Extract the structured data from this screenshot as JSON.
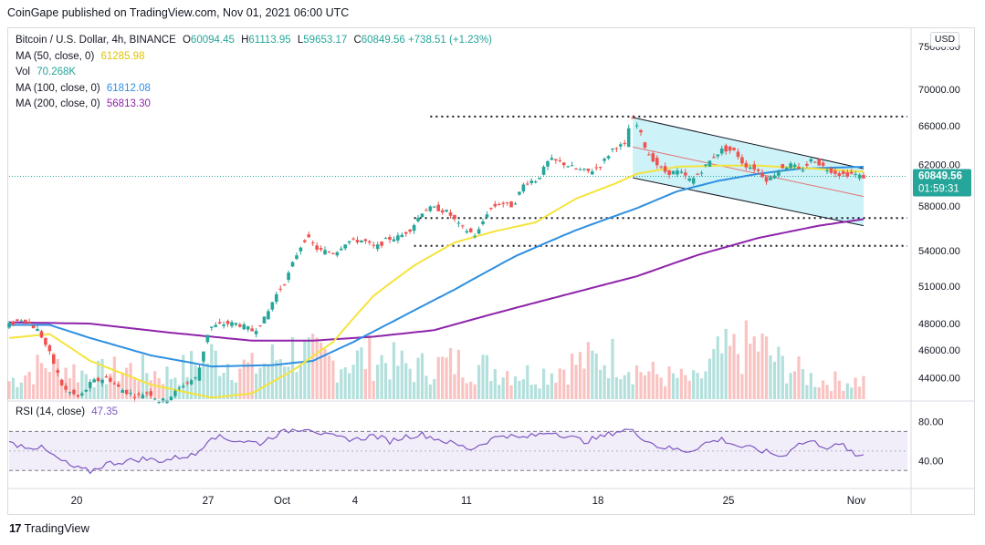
{
  "header": {
    "published": "CoinGape published on TradingView.com, Nov 01, 2021 06:00 UTC"
  },
  "legend": {
    "symbol": "Bitcoin / U.S. Dollar, 4h, BINANCE",
    "ohlc": {
      "o_key": "O",
      "o": "60094.45",
      "h_key": "H",
      "h": "61113.95",
      "l_key": "L",
      "l": "59653.17",
      "c_key": "C",
      "c": "60849.56",
      "change": "+738.51 (+1.23%)"
    },
    "ma50": {
      "label": "MA (50, close, 0)",
      "value": "61285.98"
    },
    "vol": {
      "label": "Vol",
      "value": "70.268K"
    },
    "ma100": {
      "label": "MA (100, close, 0)",
      "value": "61812.08"
    },
    "ma200": {
      "label": "MA (200, close, 0)",
      "value": "56813.30"
    },
    "rsi": {
      "label": "RSI (14, close)",
      "value": "47.35"
    }
  },
  "currency_button": "USD",
  "footer": {
    "brand": "TradingView",
    "logo": "17"
  },
  "colors": {
    "up": "#26a69a",
    "down": "#ef5350",
    "ma50": "#f5e33c",
    "ma100": "#2e8fe0",
    "ma200": "#8e24aa",
    "rsi": "#7e57c2",
    "channel": "#b2ebf2"
  },
  "chart_data": {
    "type": "candlestick",
    "price_axis": {
      "ticks": [
        75000,
        70000,
        66000,
        62000,
        58000,
        54000,
        51000,
        48000,
        46000,
        44000
      ],
      "tick_labels": [
        "75000.00",
        "70000.00",
        "66000.00",
        "62000.00",
        "58000.00",
        "54000.00",
        "51000.00",
        "48000.00",
        "46000.00",
        "44000.00"
      ],
      "scale": "log"
    },
    "current_price": {
      "value": 60849.56,
      "label": "60849.56",
      "countdown": "01:59:31"
    },
    "rsi_axis": {
      "tick_labels": [
        "80.00",
        "40.00"
      ],
      "band": [
        30,
        70
      ]
    },
    "time_axis": {
      "labels": [
        "20",
        "27",
        "Oct",
        "4",
        "11",
        "18",
        "25",
        "Nov"
      ]
    },
    "price_path": [
      [
        0,
        47800
      ],
      [
        4,
        48400
      ],
      [
        8,
        47400
      ],
      [
        11,
        45500
      ],
      [
        14,
        43200
      ],
      [
        18,
        42600
      ],
      [
        21,
        43700
      ],
      [
        25,
        44000
      ],
      [
        28,
        43200
      ],
      [
        32,
        42700
      ],
      [
        35,
        43000
      ],
      [
        38,
        42300
      ],
      [
        41,
        42800
      ],
      [
        44,
        43600
      ],
      [
        47,
        44000
      ],
      [
        50,
        47700
      ],
      [
        54,
        48000
      ],
      [
        57,
        48000
      ],
      [
        61,
        47400
      ],
      [
        64,
        48500
      ],
      [
        66,
        50000
      ],
      [
        69,
        51500
      ],
      [
        72,
        54000
      ],
      [
        74,
        55200
      ],
      [
        77,
        54000
      ],
      [
        81,
        53800
      ],
      [
        84,
        54800
      ],
      [
        88,
        54900
      ],
      [
        91,
        54200
      ],
      [
        94,
        55000
      ],
      [
        97,
        55200
      ],
      [
        100,
        56000
      ],
      [
        103,
        57700
      ],
      [
        106,
        57800
      ],
      [
        109,
        57400
      ],
      [
        112,
        56100
      ],
      [
        116,
        55300
      ],
      [
        119,
        57700
      ],
      [
        122,
        58300
      ],
      [
        125,
        58000
      ],
      [
        128,
        60300
      ],
      [
        131,
        60500
      ],
      [
        134,
        62500
      ],
      [
        137,
        62200
      ],
      [
        141,
        61500
      ],
      [
        144,
        61300
      ],
      [
        147,
        62100
      ],
      [
        150,
        63800
      ],
      [
        153,
        64000
      ],
      [
        154,
        66900
      ],
      [
        156,
        65800
      ],
      [
        158,
        63400
      ],
      [
        161,
        61800
      ],
      [
        163,
        61200
      ],
      [
        166,
        61300
      ],
      [
        169,
        60400
      ],
      [
        172,
        61600
      ],
      [
        175,
        63000
      ],
      [
        177,
        63600
      ],
      [
        180,
        63300
      ],
      [
        182,
        62000
      ],
      [
        185,
        61600
      ],
      [
        188,
        60400
      ],
      [
        191,
        61700
      ],
      [
        194,
        62000
      ],
      [
        196,
        61300
      ],
      [
        199,
        62600
      ],
      [
        202,
        61700
      ],
      [
        206,
        61000
      ],
      [
        209,
        61100
      ],
      [
        211,
        60800
      ]
    ],
    "ma50_values": [
      [
        0,
        46900
      ],
      [
        10,
        47200
      ],
      [
        20,
        45200
      ],
      [
        35,
        43500
      ],
      [
        50,
        42600
      ],
      [
        60,
        42900
      ],
      [
        70,
        44500
      ],
      [
        80,
        46600
      ],
      [
        90,
        50200
      ],
      [
        100,
        52700
      ],
      [
        110,
        54700
      ],
      [
        120,
        55700
      ],
      [
        130,
        56500
      ],
      [
        140,
        58700
      ],
      [
        150,
        60200
      ],
      [
        155,
        61100
      ],
      [
        165,
        61800
      ],
      [
        175,
        61900
      ],
      [
        185,
        61900
      ],
      [
        195,
        61700
      ],
      [
        211,
        61300
      ]
    ],
    "ma100_values": [
      [
        0,
        47900
      ],
      [
        10,
        47900
      ],
      [
        20,
        46900
      ],
      [
        35,
        45600
      ],
      [
        50,
        44800
      ],
      [
        65,
        44900
      ],
      [
        75,
        45200
      ],
      [
        85,
        46600
      ],
      [
        95,
        48200
      ],
      [
        110,
        50700
      ],
      [
        125,
        53500
      ],
      [
        140,
        55800
      ],
      [
        155,
        57800
      ],
      [
        165,
        59400
      ],
      [
        175,
        60400
      ],
      [
        185,
        61100
      ],
      [
        195,
        61600
      ],
      [
        211,
        61800
      ]
    ],
    "ma200_values": [
      [
        0,
        48100
      ],
      [
        20,
        48000
      ],
      [
        40,
        47300
      ],
      [
        60,
        46700
      ],
      [
        75,
        46700
      ],
      [
        90,
        47000
      ],
      [
        105,
        47500
      ],
      [
        120,
        48800
      ],
      [
        140,
        50500
      ],
      [
        155,
        51800
      ],
      [
        170,
        53600
      ],
      [
        185,
        55100
      ],
      [
        200,
        56200
      ],
      [
        211,
        56800
      ]
    ],
    "horizontal_levels": [
      67000,
      56900,
      54400
    ],
    "descending_channel": {
      "upper": [
        [
          154,
          66900
        ],
        [
          211,
          61600
        ]
      ],
      "lower": [
        [
          154,
          60700
        ],
        [
          211,
          56200
        ]
      ]
    },
    "rsi_values": [
      [
        0,
        58
      ],
      [
        4,
        55
      ],
      [
        8,
        53
      ],
      [
        12,
        42
      ],
      [
        16,
        33
      ],
      [
        20,
        29
      ],
      [
        24,
        37
      ],
      [
        28,
        39
      ],
      [
        33,
        42
      ],
      [
        38,
        40
      ],
      [
        42,
        44
      ],
      [
        46,
        46
      ],
      [
        50,
        66
      ],
      [
        54,
        62
      ],
      [
        58,
        60
      ],
      [
        62,
        58
      ],
      [
        66,
        67
      ],
      [
        70,
        72
      ],
      [
        74,
        74
      ],
      [
        78,
        66
      ],
      [
        82,
        63
      ],
      [
        86,
        62
      ],
      [
        90,
        66
      ],
      [
        94,
        60
      ],
      [
        98,
        65
      ],
      [
        102,
        67
      ],
      [
        106,
        62
      ],
      [
        110,
        57
      ],
      [
        114,
        52
      ],
      [
        118,
        60
      ],
      [
        122,
        67
      ],
      [
        126,
        63
      ],
      [
        130,
        66
      ],
      [
        134,
        70
      ],
      [
        138,
        65
      ],
      [
        142,
        60
      ],
      [
        146,
        64
      ],
      [
        150,
        70
      ],
      [
        153,
        72
      ],
      [
        156,
        65
      ],
      [
        160,
        55
      ],
      [
        164,
        52
      ],
      [
        168,
        50
      ],
      [
        172,
        58
      ],
      [
        176,
        62
      ],
      [
        180,
        55
      ],
      [
        184,
        52
      ],
      [
        188,
        48
      ],
      [
        191,
        44
      ],
      [
        194,
        56
      ],
      [
        198,
        60
      ],
      [
        202,
        54
      ],
      [
        206,
        56
      ],
      [
        209,
        44
      ],
      [
        211,
        47
      ]
    ],
    "volume_profile": [
      [
        0,
        3
      ],
      [
        10,
        6
      ],
      [
        20,
        4
      ],
      [
        30,
        5
      ],
      [
        40,
        4
      ],
      [
        50,
        7
      ],
      [
        60,
        5
      ],
      [
        70,
        8
      ],
      [
        80,
        6
      ],
      [
        90,
        7
      ],
      [
        100,
        5
      ],
      [
        110,
        6
      ],
      [
        120,
        5
      ],
      [
        130,
        4
      ],
      [
        140,
        6
      ],
      [
        150,
        7
      ],
      [
        155,
        5
      ],
      [
        160,
        4
      ],
      [
        170,
        3
      ],
      [
        175,
        7
      ],
      [
        180,
        8
      ],
      [
        185,
        9
      ],
      [
        190,
        6
      ],
      [
        200,
        3
      ],
      [
        211,
        3
      ]
    ]
  }
}
